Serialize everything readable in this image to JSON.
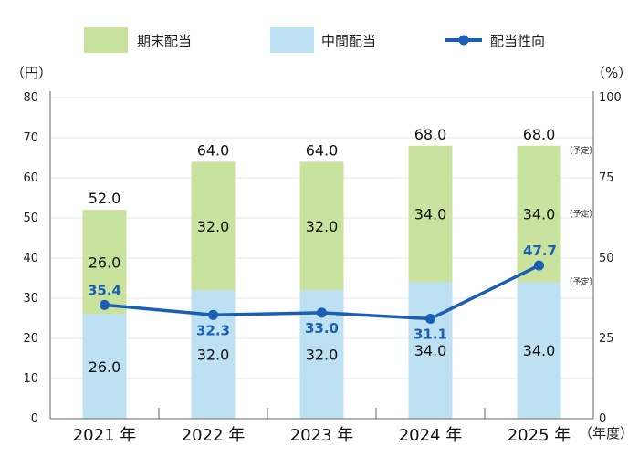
{
  "chart_data": {
    "type": "bar",
    "stacked": true,
    "categories": [
      "2021 年",
      "2022 年",
      "2023 年",
      "2024 年",
      "2025 年"
    ],
    "series": [
      {
        "name": "中間配当",
        "values": [
          26.0,
          32.0,
          32.0,
          34.0,
          34.0
        ],
        "color": "#bde0f2"
      },
      {
        "name": "期末配当",
        "values": [
          26.0,
          32.0,
          32.0,
          34.0,
          34.0
        ],
        "color": "#c9e29d"
      }
    ],
    "line_series": {
      "name": "配当性向",
      "values": [
        35.4,
        32.3,
        33.0,
        31.1,
        47.7
      ],
      "color": "#1a5fb4",
      "axis": "right"
    },
    "interim_labels": [
      "26.0",
      "32.0",
      "32.0",
      "34.0",
      "34.0"
    ],
    "final_labels": [
      "26.0",
      "32.0",
      "32.0",
      "34.0",
      "34.0"
    ],
    "total_labels": [
      "52.0",
      "64.0",
      "64.0",
      "68.0",
      "68.0"
    ],
    "ratio_labels": [
      "35.4",
      "32.3",
      "33.0",
      "31.1",
      "47.7"
    ],
    "left_axis": {
      "unit": "（円）",
      "ylim": [
        0,
        80
      ],
      "ticks": [
        "0",
        "10",
        "20",
        "30",
        "40",
        "50",
        "60",
        "70",
        "80"
      ]
    },
    "right_axis": {
      "unit": "（%）",
      "ylim": [
        0,
        100
      ],
      "ticks": [
        "0",
        "25",
        "50",
        "75",
        "100"
      ]
    },
    "x_unit": "（年度）",
    "forecast_note": "（予定）",
    "legend": [
      "期末配当",
      "中間配当",
      "配当性向"
    ]
  }
}
